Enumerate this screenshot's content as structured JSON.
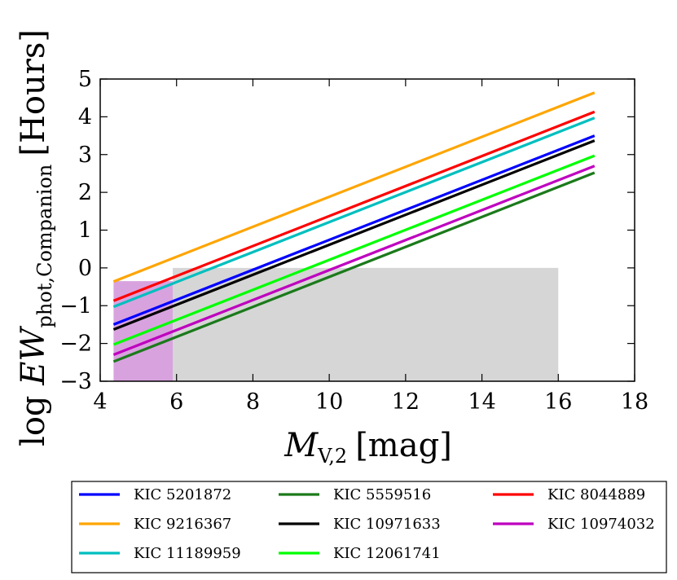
{
  "chart_data": {
    "type": "line",
    "xlabel": {
      "main": "M",
      "sub": "V,2",
      "unit": "[mag]"
    },
    "ylabel": {
      "prefix": "log ",
      "main": "EW",
      "sub": "phot,Companion",
      "unit": "[Hours]"
    },
    "xlim": [
      4,
      18
    ],
    "ylim": [
      -3,
      5
    ],
    "xticks": [
      4,
      6,
      8,
      10,
      12,
      14,
      16,
      18
    ],
    "yticks": [
      -3,
      -2,
      -1,
      0,
      1,
      2,
      3,
      4,
      5
    ],
    "grid": false,
    "legend_position": "below",
    "shaded_regions": [
      {
        "name": "magenta-region",
        "x": [
          4.35,
          5.9
        ],
        "y": [
          -3,
          -0.35
        ],
        "color": "#d8a2df"
      },
      {
        "name": "gray-region",
        "x": [
          5.9,
          16.0
        ],
        "y": [
          -3,
          0.0
        ],
        "color": "#d6d6d6"
      }
    ],
    "series": [
      {
        "name": "KIC 5201872",
        "color": "#0000ff",
        "x": [
          4.35,
          16.95
        ],
        "y": [
          -1.5,
          3.5
        ]
      },
      {
        "name": "KIC 5559516",
        "color": "#1b7a1b",
        "x": [
          4.35,
          16.95
        ],
        "y": [
          -2.48,
          2.52
        ]
      },
      {
        "name": "KIC 8044889",
        "color": "#ff0000",
        "x": [
          4.35,
          16.95
        ],
        "y": [
          -0.87,
          4.13
        ]
      },
      {
        "name": "KIC 9216367",
        "color": "#ffa500",
        "x": [
          4.35,
          16.95
        ],
        "y": [
          -0.36,
          4.64
        ]
      },
      {
        "name": "KIC 10971633",
        "color": "#000000",
        "x": [
          4.35,
          16.95
        ],
        "y": [
          -1.63,
          3.37
        ]
      },
      {
        "name": "KIC 10974032",
        "color": "#bf00bf",
        "x": [
          4.35,
          16.95
        ],
        "y": [
          -2.3,
          2.7
        ]
      },
      {
        "name": "KIC 11189959",
        "color": "#00bfbf",
        "x": [
          4.35,
          16.95
        ],
        "y": [
          -1.03,
          3.97
        ]
      },
      {
        "name": "KIC 12061741",
        "color": "#00ff00",
        "x": [
          4.35,
          16.95
        ],
        "y": [
          -2.03,
          2.97
        ]
      }
    ],
    "legend_order": [
      "KIC 5201872",
      "KIC 9216367",
      "KIC 11189959",
      "KIC 5559516",
      "KIC 10971633",
      "KIC 12061741",
      "KIC 8044889",
      "KIC 10974032"
    ]
  }
}
